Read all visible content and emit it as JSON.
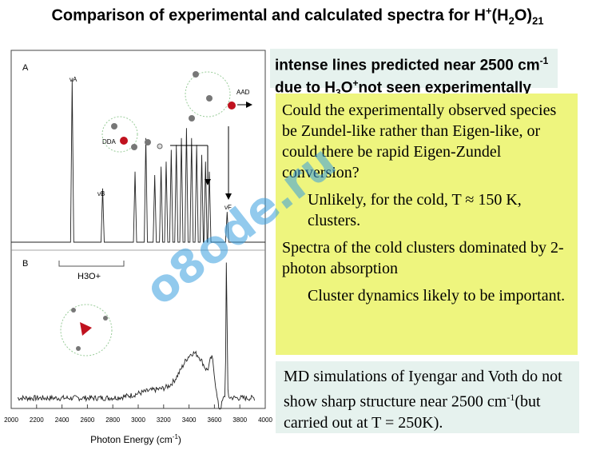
{
  "title": {
    "prefix": "Comparison of experimental and calculated spectra for H",
    "sup1": "+",
    "mid": "(H",
    "sub1": "2",
    "mid2": "O)",
    "sub2": "21"
  },
  "top_box": {
    "line1": "intense lines predicted near 2500 cm",
    "sup": "-1",
    "line2a": "due to H",
    "sub": "3",
    "line2b": "O",
    "sup2": "+",
    "line2c": "not seen experimentally"
  },
  "yellow_box": {
    "p1": "Could the experimentally observed species be Zundel-like rather than Eigen-like, or could there be rapid Eigen-Zundel conversion?",
    "p2": "Unlikely, for the cold, T ≈ 150 K, clusters.",
    "p3": "Spectra of the cold clusters dominated by 2-photon absorption",
    "p4": "Cluster dynamics likely to be important."
  },
  "md_box": {
    "a": "MD simulations of Iyengar and Voth do not show sharp structure near 2500 cm",
    "sup": "-1",
    "b": "(but carried out at  T = 250K)."
  },
  "watermark": "o8ode.ru",
  "chart_data": {
    "type": "line",
    "panels": [
      "A",
      "B"
    ],
    "xlabel": "Photon Energy (cm",
    "xlabel_sup": "-1",
    "xlabel_end": ")",
    "xlim": [
      2000,
      4000
    ],
    "xticks": [
      2000,
      2200,
      2400,
      2600,
      2800,
      3000,
      3200,
      3400,
      3600,
      3800,
      4000
    ],
    "labels": {
      "va": "νA",
      "vb": "νB",
      "vf": "νF",
      "dda": "DDA",
      "aad": "AAD",
      "h3o": "H3O+"
    },
    "panelA_peaks": [
      {
        "x": 2480,
        "h": 0.97
      },
      {
        "x": 2720,
        "h": 0.32
      },
      {
        "x": 2975,
        "h": 0.42
      },
      {
        "x": 3060,
        "h": 0.62
      },
      {
        "x": 3130,
        "h": 0.4
      },
      {
        "x": 3180,
        "h": 0.45
      },
      {
        "x": 3220,
        "h": 0.48
      },
      {
        "x": 3260,
        "h": 0.55
      },
      {
        "x": 3300,
        "h": 0.58
      },
      {
        "x": 3340,
        "h": 0.62
      },
      {
        "x": 3380,
        "h": 0.68
      },
      {
        "x": 3420,
        "h": 0.62
      },
      {
        "x": 3460,
        "h": 0.58
      },
      {
        "x": 3500,
        "h": 0.52
      },
      {
        "x": 3530,
        "h": 0.48
      },
      {
        "x": 3560,
        "h": 0.42
      },
      {
        "x": 3700,
        "h": 0.18
      }
    ]
  }
}
